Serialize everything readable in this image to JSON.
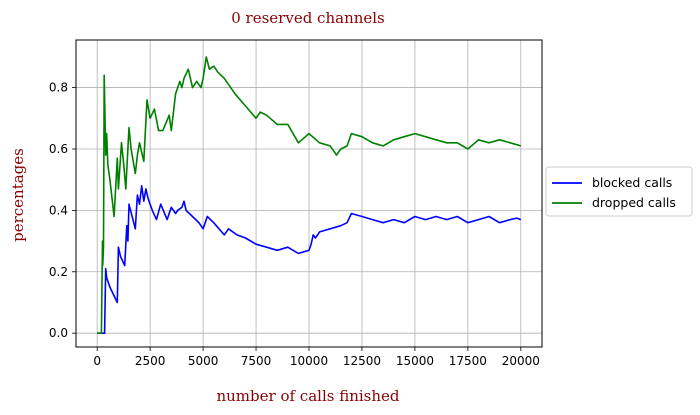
{
  "chart_data": {
    "type": "line",
    "title": "0 reserved channels",
    "xlabel": "number of calls finished",
    "ylabel": "percentages",
    "xlim": [
      -1000,
      21000
    ],
    "ylim": [
      -0.045,
      0.955
    ],
    "xticks": [
      0,
      2500,
      5000,
      7500,
      10000,
      12500,
      15000,
      17500,
      20000
    ],
    "yticks": [
      0.0,
      0.2,
      0.4,
      0.6,
      0.8
    ],
    "xtick_labels": [
      "0",
      "2500",
      "5000",
      "7500",
      "10000",
      "12500",
      "15000",
      "17500",
      "20000"
    ],
    "ytick_labels": [
      "0.0",
      "0.2",
      "0.4",
      "0.6",
      "0.8"
    ],
    "grid": true,
    "legend_position": "outside-right",
    "label_color": "#8b0000",
    "series": [
      {
        "name": "blocked calls",
        "color": "#0000ff",
        "x": [
          0,
          200,
          250,
          260,
          350,
          400,
          450,
          600,
          950,
          1000,
          1100,
          1300,
          1400,
          1450,
          1500,
          1800,
          1900,
          2000,
          2100,
          2200,
          2300,
          2400,
          2500,
          2600,
          2800,
          3000,
          3300,
          3500,
          3700,
          3800,
          4000,
          4100,
          4200,
          4500,
          4800,
          5000,
          5200,
          5500,
          6000,
          6200,
          6600,
          7000,
          7500,
          8000,
          8500,
          9000,
          9500,
          10000,
          10100,
          10200,
          10300,
          10500,
          11000,
          11500,
          11800,
          12000,
          12500,
          13000,
          13500,
          14000,
          14500,
          15000,
          15500,
          16000,
          16500,
          17000,
          17500,
          18000,
          18500,
          19000,
          19500,
          19800,
          20000
        ],
        "y": [
          0.0,
          0.0,
          0.0,
          0.0,
          0.0,
          0.21,
          0.18,
          0.15,
          0.1,
          0.28,
          0.25,
          0.22,
          0.35,
          0.3,
          0.42,
          0.34,
          0.45,
          0.42,
          0.48,
          0.43,
          0.47,
          0.44,
          0.42,
          0.4,
          0.37,
          0.42,
          0.37,
          0.41,
          0.39,
          0.4,
          0.41,
          0.43,
          0.4,
          0.38,
          0.36,
          0.34,
          0.38,
          0.36,
          0.32,
          0.34,
          0.32,
          0.31,
          0.29,
          0.28,
          0.27,
          0.28,
          0.26,
          0.27,
          0.29,
          0.32,
          0.31,
          0.33,
          0.34,
          0.35,
          0.36,
          0.39,
          0.38,
          0.37,
          0.36,
          0.37,
          0.36,
          0.38,
          0.37,
          0.38,
          0.37,
          0.38,
          0.36,
          0.37,
          0.38,
          0.36,
          0.37,
          0.375,
          0.37
        ]
      },
      {
        "name": "dropped calls",
        "color": "#008000",
        "x": [
          0,
          200,
          250,
          260,
          300,
          330,
          400,
          450,
          500,
          600,
          800,
          950,
          1000,
          1150,
          1250,
          1350,
          1500,
          1600,
          1800,
          1900,
          2000,
          2200,
          2350,
          2500,
          2700,
          2900,
          3100,
          3400,
          3500,
          3700,
          3900,
          4000,
          4100,
          4300,
          4500,
          4700,
          4900,
          5000,
          5150,
          5300,
          5500,
          5700,
          6000,
          6500,
          7000,
          7500,
          7700,
          8000,
          8500,
          9000,
          9500,
          10000,
          10500,
          11000,
          11300,
          11500,
          11800,
          12000,
          12500,
          13000,
          13500,
          14000,
          14500,
          15000,
          15500,
          16000,
          16500,
          17000,
          17500,
          18000,
          18500,
          19000,
          19500,
          20000
        ],
        "y": [
          0.0,
          0.0,
          0.3,
          0.22,
          0.28,
          0.84,
          0.58,
          0.65,
          0.55,
          0.5,
          0.38,
          0.57,
          0.47,
          0.62,
          0.55,
          0.47,
          0.67,
          0.6,
          0.52,
          0.58,
          0.62,
          0.56,
          0.76,
          0.7,
          0.73,
          0.66,
          0.66,
          0.71,
          0.66,
          0.78,
          0.82,
          0.8,
          0.83,
          0.86,
          0.8,
          0.82,
          0.8,
          0.83,
          0.9,
          0.86,
          0.87,
          0.85,
          0.83,
          0.78,
          0.74,
          0.7,
          0.72,
          0.71,
          0.68,
          0.68,
          0.62,
          0.65,
          0.62,
          0.61,
          0.58,
          0.6,
          0.61,
          0.65,
          0.64,
          0.62,
          0.61,
          0.63,
          0.64,
          0.65,
          0.64,
          0.63,
          0.62,
          0.62,
          0.6,
          0.63,
          0.62,
          0.63,
          0.62,
          0.61
        ]
      }
    ]
  }
}
